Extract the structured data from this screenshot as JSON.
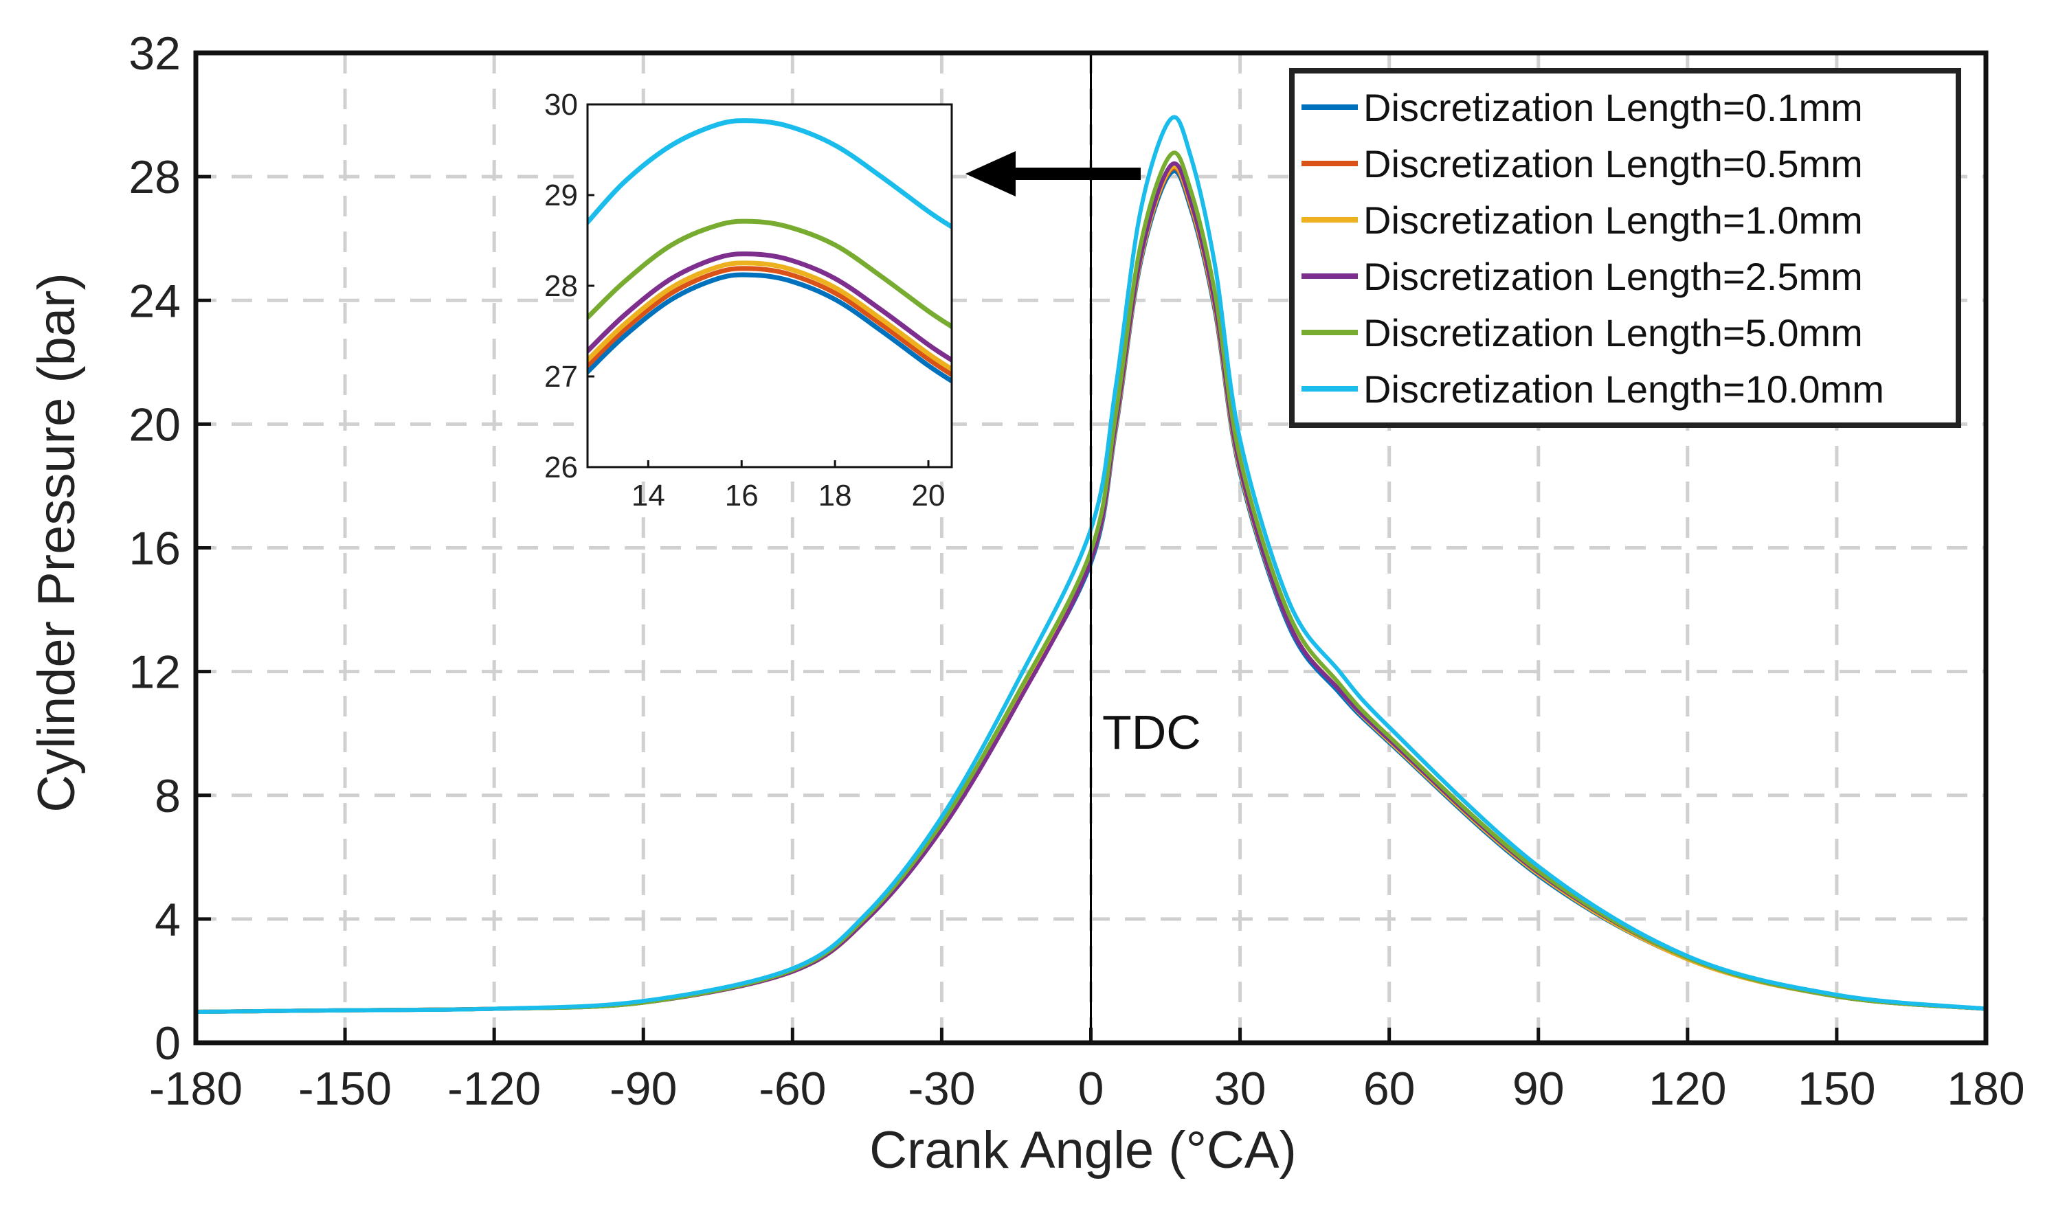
{
  "chart_data": {
    "type": "line",
    "xlabel": "Crank Angle (°CA)",
    "ylabel": "Cylinder Pressure (bar)",
    "xlim": [
      -180,
      180
    ],
    "ylim": [
      0,
      32
    ],
    "xticks": [
      "-180",
      "-150",
      "-120",
      "-90",
      "-60",
      "-30",
      "0",
      "30",
      "60",
      "90",
      "120",
      "150",
      "180"
    ],
    "yticks": [
      "0",
      "4",
      "8",
      "12",
      "16",
      "20",
      "24",
      "28",
      "32"
    ],
    "grid": true,
    "legend_position": "top-right",
    "annotation": "TDC",
    "series": [
      {
        "name": "Discretization Length=0.1mm",
        "color": "#0072BD",
        "x": [
          -180,
          -150,
          -120,
          -90,
          -60,
          -45,
          -30,
          -15,
          0,
          5,
          10,
          16,
          20,
          25,
          30,
          40,
          50,
          60,
          90,
          120,
          150,
          180
        ],
        "y": [
          1.0,
          1.05,
          1.1,
          1.3,
          2.3,
          4.0,
          7.0,
          11.0,
          15.5,
          19.8,
          25.2,
          28.1,
          27.0,
          23.6,
          18.4,
          13.4,
          11.3,
          9.7,
          5.4,
          2.7,
          1.5,
          1.1
        ]
      },
      {
        "name": "Discretization Length=0.5mm",
        "color": "#D95319",
        "x": [
          -180,
          -150,
          -120,
          -90,
          -60,
          -45,
          -30,
          -15,
          0,
          5,
          10,
          16,
          20,
          25,
          30,
          40,
          50,
          60,
          90,
          120,
          150,
          180
        ],
        "y": [
          1.0,
          1.05,
          1.1,
          1.3,
          2.3,
          4.0,
          7.0,
          11.0,
          15.6,
          19.9,
          25.3,
          28.2,
          27.1,
          23.7,
          18.5,
          13.5,
          11.4,
          9.75,
          5.45,
          2.7,
          1.5,
          1.1
        ]
      },
      {
        "name": "Discretization Length=1.0mm",
        "color": "#EDB120",
        "x": [
          -180,
          -150,
          -120,
          -90,
          -60,
          -45,
          -30,
          -15,
          0,
          5,
          10,
          16,
          20,
          25,
          30,
          40,
          50,
          60,
          90,
          120,
          150,
          180
        ],
        "y": [
          1.0,
          1.05,
          1.1,
          1.3,
          2.3,
          4.0,
          7.0,
          11.0,
          15.6,
          19.9,
          25.3,
          28.25,
          27.15,
          23.75,
          18.5,
          13.5,
          11.4,
          9.75,
          5.45,
          2.7,
          1.5,
          1.1
        ]
      },
      {
        "name": "Discretization Length=2.5mm",
        "color": "#7E2F8E",
        "x": [
          -180,
          -150,
          -120,
          -90,
          -60,
          -45,
          -30,
          -15,
          0,
          5,
          10,
          16,
          20,
          25,
          30,
          40,
          50,
          60,
          90,
          120,
          150,
          180
        ],
        "y": [
          1.0,
          1.05,
          1.1,
          1.3,
          2.3,
          4.0,
          6.9,
          10.9,
          15.6,
          20.0,
          25.4,
          28.35,
          27.25,
          23.85,
          18.6,
          13.5,
          11.4,
          9.8,
          5.5,
          2.75,
          1.5,
          1.1
        ]
      },
      {
        "name": "Discretization Length=5.0mm",
        "color": "#77AC30",
        "x": [
          -180,
          -150,
          -120,
          -90,
          -60,
          -45,
          -30,
          -15,
          0,
          5,
          10,
          16,
          20,
          25,
          30,
          40,
          50,
          60,
          90,
          120,
          150,
          180
        ],
        "y": [
          1.0,
          1.05,
          1.1,
          1.3,
          2.35,
          4.1,
          7.1,
          11.2,
          15.9,
          20.3,
          25.8,
          28.7,
          27.6,
          24.2,
          18.9,
          13.8,
          11.6,
          9.9,
          5.55,
          2.75,
          1.5,
          1.1
        ]
      },
      {
        "name": "Discretization Length=10.0mm",
        "color": "#1ABCEB",
        "x": [
          -180,
          -150,
          -120,
          -90,
          -60,
          -45,
          -30,
          -15,
          0,
          5,
          10,
          16,
          20,
          25,
          30,
          40,
          50,
          60,
          90,
          120,
          150,
          180
        ],
        "y": [
          1.0,
          1.05,
          1.1,
          1.35,
          2.4,
          4.2,
          7.3,
          11.6,
          16.6,
          21.2,
          26.9,
          29.85,
          28.7,
          25.1,
          19.5,
          14.2,
          12.0,
          10.2,
          5.7,
          2.8,
          1.55,
          1.1
        ]
      }
    ],
    "inset": {
      "xlim": [
        12.7,
        20.5
      ],
      "ylim": [
        26,
        30
      ],
      "xticks": [
        "14",
        "16",
        "18",
        "20"
      ],
      "yticks": [
        "26",
        "27",
        "28",
        "29",
        "30"
      ],
      "x": [
        12.7,
        13.5,
        14.5,
        15.5,
        16.2,
        17,
        18,
        19,
        20,
        20.5
      ],
      "series_values": [
        [
          27.05,
          27.45,
          27.85,
          28.08,
          28.12,
          28.06,
          27.85,
          27.5,
          27.12,
          26.95
        ],
        [
          27.12,
          27.52,
          27.92,
          28.15,
          28.19,
          28.13,
          27.92,
          27.57,
          27.19,
          27.02
        ],
        [
          27.18,
          27.58,
          27.98,
          28.21,
          28.25,
          28.19,
          27.98,
          27.63,
          27.25,
          27.08
        ],
        [
          27.28,
          27.68,
          28.08,
          28.31,
          28.35,
          28.29,
          28.08,
          27.73,
          27.35,
          27.18
        ],
        [
          27.65,
          28.05,
          28.45,
          28.67,
          28.71,
          28.65,
          28.45,
          28.1,
          27.72,
          27.55
        ],
        [
          28.7,
          29.15,
          29.55,
          29.78,
          29.82,
          29.76,
          29.55,
          29.2,
          28.82,
          28.65
        ]
      ]
    }
  }
}
